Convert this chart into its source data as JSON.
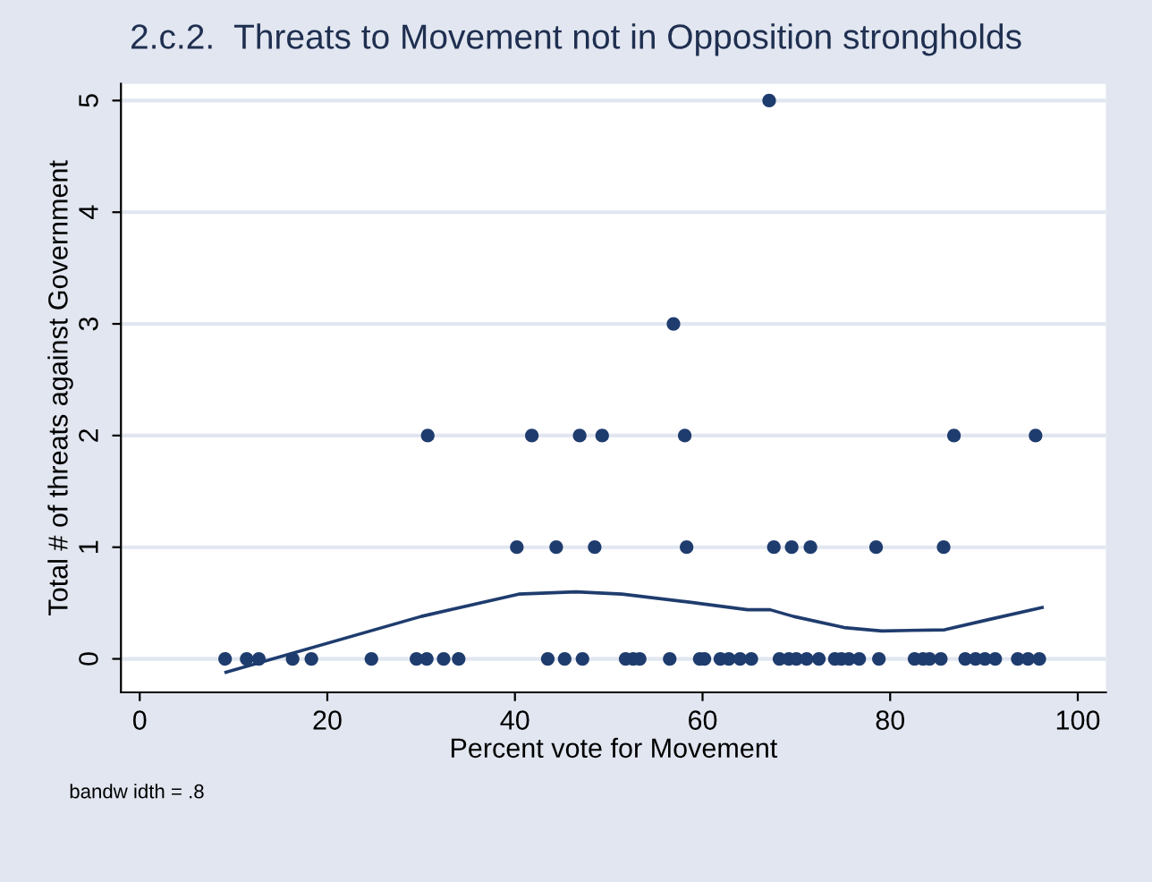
{
  "chart_data": {
    "type": "scatter",
    "title": "2.c.2.  Threats to Movement not in Opposition strongholds",
    "xlabel": "Percent vote for Movement",
    "ylabel": "Total # of threats against Government",
    "annotations": [
      "bandw idth = .8"
    ],
    "xlim": [
      -2,
      103
    ],
    "ylim": [
      -0.3,
      5.15
    ],
    "xticks": [
      0,
      20,
      40,
      60,
      80,
      100
    ],
    "yticks": [
      0,
      1,
      2,
      3,
      4,
      5
    ],
    "grid": "y",
    "legend": false,
    "marker": "circle",
    "series": [
      {
        "color": "#1f3c6e",
        "x": [
          9.1,
          11.4,
          12.7,
          16.3,
          18.3,
          24.7,
          29.5,
          30.6,
          32.4,
          34.0,
          43.5,
          45.3,
          47.2,
          51.8,
          52.6,
          53.3,
          56.5,
          59.7,
          60.2,
          61.9,
          62.8,
          64.0,
          65.2,
          68.2,
          69.2,
          70.0,
          71.1,
          72.4,
          74.1,
          74.8,
          75.6,
          76.7,
          78.8,
          82.6,
          83.5,
          84.2,
          85.4,
          88.0,
          89.1,
          90.1,
          91.2,
          93.6,
          94.7,
          95.9,
          40.2,
          44.4,
          48.5,
          58.3,
          67.6,
          69.5,
          71.5,
          78.5,
          85.7,
          30.7,
          41.8,
          46.9,
          49.3,
          58.1,
          86.8,
          95.5,
          56.9,
          67.1
        ],
        "values": [
          0,
          0,
          0,
          0,
          0,
          0,
          0,
          0,
          0,
          0,
          0,
          0,
          0,
          0,
          0,
          0,
          0,
          0,
          0,
          0,
          0,
          0,
          0,
          0,
          0,
          0,
          0,
          0,
          0,
          0,
          0,
          0,
          0,
          0,
          0,
          0,
          0,
          0,
          0,
          0,
          0,
          0,
          0,
          0,
          1,
          1,
          1,
          1,
          1,
          1,
          1,
          1,
          1,
          2,
          2,
          2,
          2,
          2,
          2,
          2,
          3,
          5
        ]
      },
      {
        "type": "line",
        "color": "#1f3c6e",
        "marker": "none",
        "line_style": "solid",
        "x": [
          9.2,
          30.0,
          40.4,
          46.5,
          51.4,
          58.4,
          64.8,
          67.2,
          69.7,
          75.1,
          79.1,
          85.8,
          90.4,
          96.2
        ],
        "values": [
          -0.12,
          0.38,
          0.58,
          0.6,
          0.58,
          0.51,
          0.44,
          0.44,
          0.38,
          0.28,
          0.25,
          0.26,
          0.35,
          0.46
        ]
      }
    ]
  }
}
